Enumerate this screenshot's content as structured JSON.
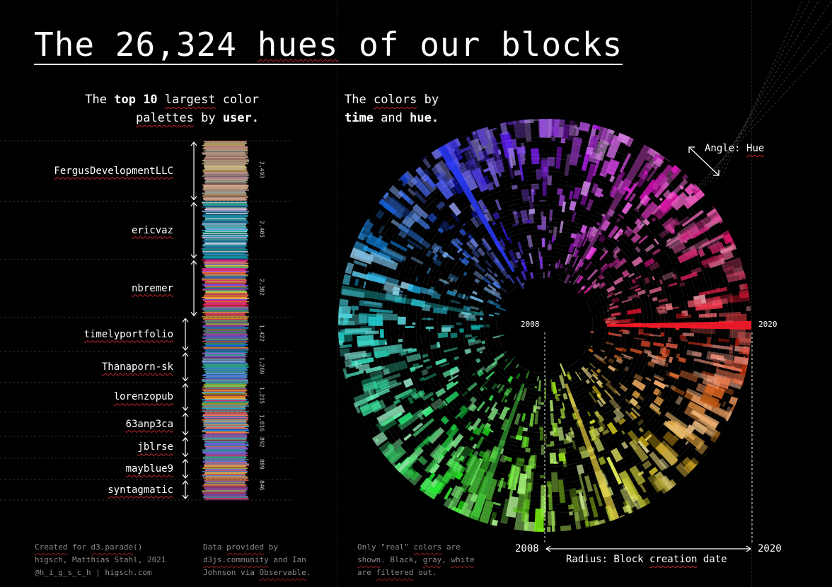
{
  "title_prefix": "The 26,324 ",
  "title_hues": "hues",
  "title_suffix": " of our blocks",
  "left_subtitle": {
    "l1_a": "The ",
    "l1_b": "top 10",
    "l1_c": " ",
    "l1_d": "largest",
    "l1_e": " color",
    "l2_a": "palettes",
    "l2_b": " by ",
    "l2_c": "user."
  },
  "right_subtitle": {
    "l1_a": "The ",
    "l1_b": "colors",
    "l1_c": " by",
    "l2_a": "time",
    "l2_b": " and ",
    "l2_c": "hue."
  },
  "chart_data": [
    {
      "type": "bar",
      "title": "The top 10 largest color palettes by user.",
      "categories": [
        "FergusDevelopmentLLC",
        "ericvaz",
        "nbremer",
        "timelyportfolio",
        "Thanaporn-sk",
        "lorenzopub",
        "63anp3ca",
        "jblrse",
        "mayblue9",
        "syntagmatic"
      ],
      "values": [
        2493,
        2405,
        2382,
        1422,
        1269,
        1215,
        1016,
        892,
        889,
        846
      ],
      "value_labels": [
        "2,493",
        "2,405",
        "2,382",
        "1,422",
        "1,269",
        "1,215",
        "1,016",
        "892",
        "889",
        "846"
      ],
      "palette_dominant_colors": [
        [
          "#b79983",
          "#c9a48a",
          "#8a7466",
          "#d2b79e"
        ],
        [
          "#c8d2db",
          "#1f8aa3",
          "#0c6f88",
          "#2aa0b6"
        ],
        [
          "#d94a8f",
          "#e58a3c",
          "#7a5cc7",
          "#3fae8e",
          "#cc3355",
          "#e0c040"
        ],
        [
          "#3f9f5f",
          "#8b4fb0",
          "#d24a4a",
          "#2f7fbf",
          "#e69a3a"
        ],
        [
          "#3f7fbf",
          "#5aa0d8",
          "#7a5ab0",
          "#2f9f9f"
        ],
        [
          "#d24a6a",
          "#4a9fd8",
          "#e0a03a",
          "#5ab05a"
        ],
        [
          "#3a6fd0",
          "#d25a9a",
          "#5ac0c0",
          "#e0803a"
        ],
        [
          "#7a5ad0",
          "#d04a7a",
          "#4aa0a0"
        ],
        [
          "#e0a050",
          "#6a8ad0",
          "#d06a6a"
        ],
        [
          "#d04a4a",
          "#4a8ad0",
          "#c0c040",
          "#8a4ab0"
        ]
      ]
    },
    {
      "type": "radial",
      "title": "The colors by time and hue.",
      "angle_encoding": "Hue",
      "radius_encoding": "Block creation date",
      "radius_range": [
        2008,
        2020
      ]
    }
  ],
  "angle_label_a": "Angle: ",
  "angle_label_b": "Hue",
  "radius_label_a": "Radius: Block ",
  "radius_label_b": "creation",
  "radius_label_c": " date",
  "year_start": "2008",
  "year_end": "2020",
  "footer1": {
    "l1_a": "Created",
    "l1_b": " for ",
    "l1_c": "d3.parade",
    "l1_d": "()",
    "l2": "higsch, Matthias Stahl, 2021",
    "l3_a": "@h_i_g_s_c_h",
    "l3_b": " | higsch.com"
  },
  "footer2": {
    "l1_a": "Data ",
    "l1_b": "provided",
    "l1_c": " by",
    "l2_a": "d3js.community",
    "l2_b": " and Ian",
    "l3_a": "Johnson via ",
    "l3_b": "Observable",
    "l3_c": "."
  },
  "footer3": {
    "l1_a": "Only \"real\" ",
    "l1_b": "colors",
    "l1_c": " are",
    "l2_a": "shown",
    "l2_b": ". Black, ",
    "l2_c": "gray",
    "l2_d": ", ",
    "l2_e": "white",
    "l3_a": "are ",
    "l3_b": "filtered",
    "l3_c": " out."
  }
}
